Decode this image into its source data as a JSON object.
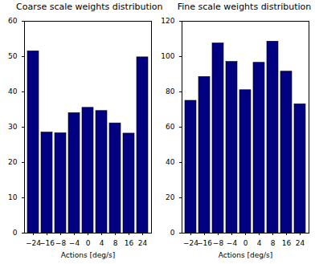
{
  "chart_data": [
    {
      "type": "bar",
      "title": "Coarse scale weights distribution",
      "x_label": "Actions [deg/s]",
      "categories": [
        "−24",
        "−16",
        "−8",
        "−4",
        "0",
        "4",
        "8",
        "16",
        "24"
      ],
      "values": [
        51.5,
        28.5,
        28.3,
        34,
        35.5,
        34.6,
        31.1,
        28.2,
        49.8
      ],
      "color": "#000080",
      "ylim": [
        0,
        60
      ],
      "yticks": [
        0,
        10,
        20,
        30,
        40,
        50,
        60
      ],
      "grid": false
    },
    {
      "type": "bar",
      "title": "Fine scale weights distribution",
      "x_label": "Actions [deg/s]",
      "categories": [
        "−24",
        "−16",
        "−8",
        "−4",
        "0",
        "4",
        "8",
        "16",
        "24"
      ],
      "values": [
        75,
        88.5,
        107.5,
        97,
        81,
        96.5,
        108.5,
        91.5,
        73
      ],
      "color": "#000080",
      "ylim": [
        0,
        120
      ],
      "yticks": [
        0,
        20,
        40,
        60,
        80,
        100,
        120
      ],
      "grid": false
    }
  ]
}
